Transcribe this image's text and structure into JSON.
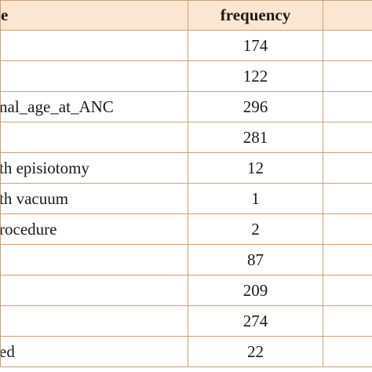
{
  "table": {
    "header": {
      "variable": "e",
      "frequency": "frequency"
    },
    "rows": [
      {
        "variable": "",
        "frequency": "174"
      },
      {
        "variable": "",
        "frequency": "122"
      },
      {
        "variable": "nal_age_at_ANC",
        "frequency": "296"
      },
      {
        "variable": "",
        "frequency": "281"
      },
      {
        "variable": "th episiotomy",
        "frequency": "12"
      },
      {
        "variable": "th vacuum",
        "frequency": "1"
      },
      {
        "variable": "rocedure",
        "frequency": "2"
      },
      {
        "variable": "",
        "frequency": "87"
      },
      {
        "variable": "",
        "frequency": "209"
      },
      {
        "variable": "",
        "frequency": "274"
      },
      {
        "variable": "ed",
        "frequency": "22"
      }
    ]
  }
}
